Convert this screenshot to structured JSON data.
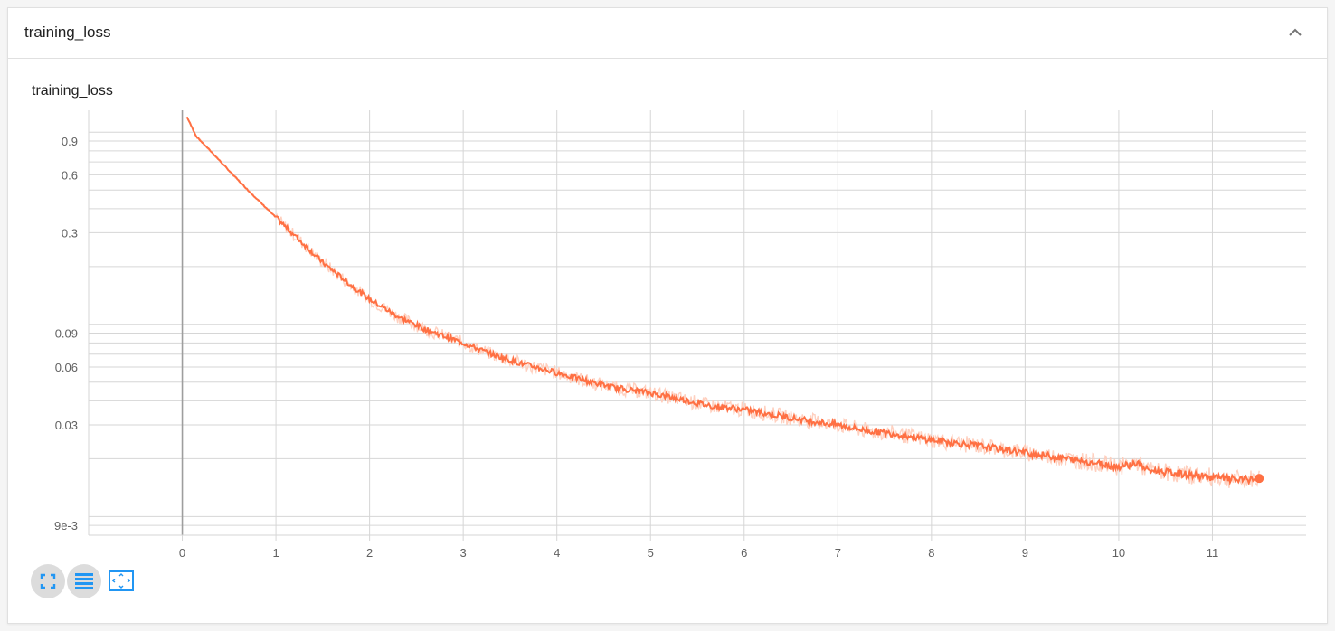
{
  "card": {
    "title": "training_loss"
  },
  "icons": {
    "collapse": "chevron-up-icon",
    "fit_domain": "fit-domain-icon",
    "toggle_log_scale": "list-lines-icon",
    "fit_to_data": "expand-view-icon"
  },
  "colors": {
    "series": "#ff7043",
    "series_raw": "#ffcbb8",
    "grid": "#d6d6d6",
    "axis_text": "#616161",
    "zero_line": "#9e9e9e",
    "icon_blue": "#2196f3"
  },
  "chart_data": {
    "type": "line",
    "title": "training_loss",
    "xlabel": "",
    "ylabel": "",
    "y_scale": "log",
    "xlim": [
      -1,
      12
    ],
    "ylim": [
      0.008,
      1.3
    ],
    "x_ticks": [
      0,
      1,
      2,
      3,
      4,
      5,
      6,
      7,
      8,
      9,
      10,
      11
    ],
    "y_ticks": [
      0.009,
      0.03,
      0.06,
      0.09,
      0.3,
      0.6,
      0.9
    ],
    "y_tick_labels": [
      "9e-3",
      "0.03",
      "0.06",
      "0.09",
      "0.3",
      "0.6",
      "0.9"
    ],
    "grid": true,
    "legend": "none",
    "series": [
      {
        "smoothed": true,
        "x": [
          0.05,
          0.15,
          0.3,
          0.5,
          0.7,
          1.0,
          1.3,
          1.5,
          1.8,
          2.0,
          2.3,
          2.6,
          3.0,
          3.3,
          3.6,
          4.0,
          4.3,
          4.6,
          5.0,
          5.3,
          5.6,
          6.0,
          6.3,
          6.6,
          7.0,
          7.3,
          7.6,
          8.0,
          8.3,
          8.6,
          9.0,
          9.3,
          9.6,
          10.0,
          10.2,
          10.3,
          10.6,
          11.0,
          11.3,
          11.5
        ],
        "y": [
          1.2,
          0.95,
          0.8,
          0.63,
          0.5,
          0.36,
          0.26,
          0.21,
          0.16,
          0.135,
          0.11,
          0.094,
          0.08,
          0.07,
          0.063,
          0.056,
          0.051,
          0.047,
          0.044,
          0.041,
          0.038,
          0.036,
          0.034,
          0.032,
          0.03,
          0.028,
          0.027,
          0.025,
          0.024,
          0.023,
          0.0215,
          0.0205,
          0.0195,
          0.0182,
          0.019,
          0.0175,
          0.0168,
          0.016,
          0.0155,
          0.0158
        ]
      }
    ]
  }
}
